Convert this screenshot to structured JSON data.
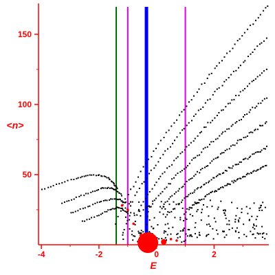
{
  "chart_data": {
    "type": "scatter",
    "title": "",
    "xlabel": "E",
    "ylabel": "<n>",
    "xlim": [
      -4.1,
      3.9
    ],
    "ylim": [
      0,
      172
    ],
    "grid": false,
    "x_ticks": [
      -4,
      -2,
      0,
      2
    ],
    "y_ticks": [
      50,
      100,
      150
    ],
    "colors": {
      "axes": "#ff0000",
      "points": "#000000",
      "markers": "#ff0000",
      "vline_green": "#006400",
      "vline_blue": "#0000ff",
      "vline_magenta": "#dd00dd"
    },
    "vertical_lines": [
      {
        "x": -1.4,
        "color": "#006400",
        "width": "thin"
      },
      {
        "x": -1.0,
        "color": "#dd00dd",
        "width": "thin"
      },
      {
        "x": -0.35,
        "color": "#0000ff",
        "width": "thick"
      },
      {
        "x": 1.0,
        "color": "#dd00dd",
        "width": "thin"
      }
    ],
    "bands": [
      {
        "x0": -1.45,
        "x1": 3.85,
        "y0": 15,
        "y1": 171
      },
      {
        "x0": -1.1,
        "x1": 3.8,
        "y0": 20,
        "y1": 148
      },
      {
        "x0": -0.7,
        "x1": 3.8,
        "y0": 22,
        "y1": 126
      },
      {
        "x0": -0.3,
        "x1": 3.8,
        "y0": 24,
        "y1": 105
      },
      {
        "x0": 0.1,
        "x1": 3.8,
        "y0": 24,
        "y1": 88
      },
      {
        "x0": 0.5,
        "x1": 3.8,
        "y0": 24,
        "y1": 70
      },
      {
        "x0": 1.0,
        "x1": 3.8,
        "y0": 24,
        "y1": 57
      }
    ],
    "arcs": [
      {
        "x": [
          -4.0,
          -3.4,
          -2.8,
          -2.4,
          -2.0,
          -1.7,
          -1.5,
          -1.35
        ],
        "y": [
          40,
          44,
          48,
          50,
          50,
          48,
          44,
          40
        ]
      },
      {
        "x": [
          -3.3,
          -2.8,
          -2.3,
          -1.9,
          -1.6,
          -1.4,
          -1.2
        ],
        "y": [
          30,
          34,
          38,
          41,
          41,
          39,
          35
        ]
      },
      {
        "x": [
          -3.0,
          -2.5,
          -2.0,
          -1.6,
          -1.3,
          -1.1
        ],
        "y": [
          23,
          27,
          31,
          33,
          33,
          30
        ]
      },
      {
        "x": [
          -2.6,
          -2.1,
          -1.7,
          -1.4,
          -1.2,
          -1.0
        ],
        "y": [
          17,
          21,
          25,
          27,
          26,
          22
        ]
      }
    ],
    "scatter_clusters": [
      {
        "x0": -1.2,
        "x1": 3.8,
        "y0": 4,
        "y1": 32,
        "n": 190
      },
      {
        "x0": -0.9,
        "x1": 1.2,
        "y0": 2,
        "y1": 12,
        "n": 40
      }
    ],
    "red_markers": [
      {
        "x": -0.3,
        "y": 3,
        "size": "large"
      },
      {
        "x": 0.25,
        "y": 2,
        "size": "medium"
      },
      {
        "x": 0.5,
        "y": 4,
        "size": "small"
      },
      {
        "x": 0.7,
        "y": 3,
        "size": "small"
      },
      {
        "x": -0.55,
        "y": 7,
        "size": "small"
      },
      {
        "x": -0.8,
        "y": 15,
        "size": "small"
      },
      {
        "x": -1.0,
        "y": 25,
        "size": "small"
      },
      {
        "x": -1.2,
        "y": 28,
        "size": "small"
      }
    ]
  }
}
